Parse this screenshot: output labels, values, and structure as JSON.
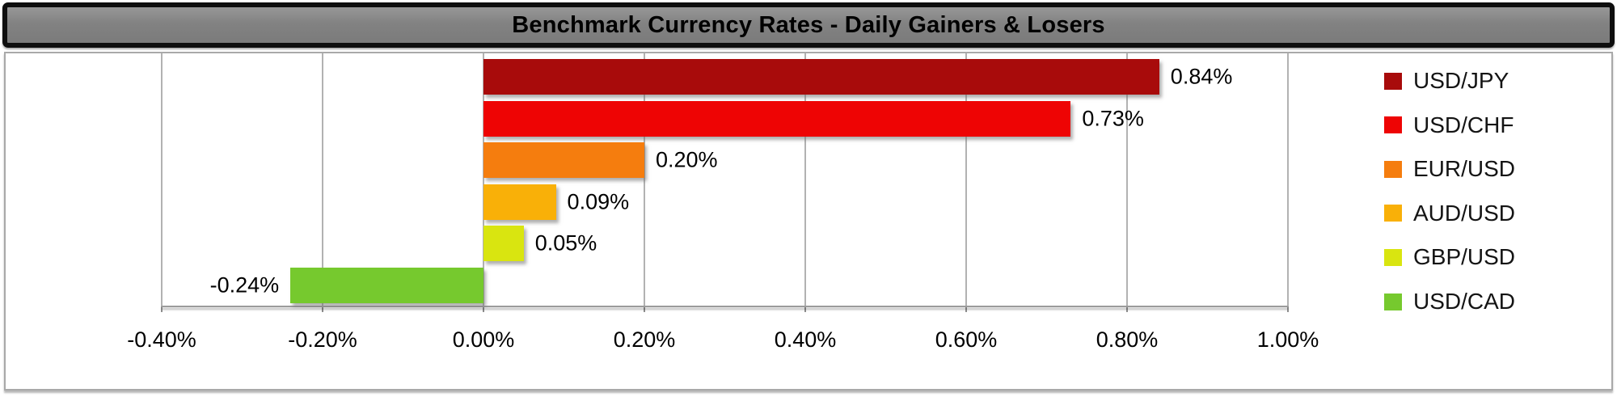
{
  "chart_data": {
    "type": "bar",
    "orientation": "horizontal",
    "title": "Benchmark Currency Rates - Daily Gainers & Losers",
    "categories": [
      "USD/JPY",
      "USD/CHF",
      "EUR/USD",
      "AUD/USD",
      "GBP/USD",
      "USD/CAD"
    ],
    "values": [
      0.84,
      0.73,
      0.2,
      0.09,
      0.05,
      -0.24
    ],
    "value_labels": [
      "0.84%",
      "0.73%",
      "0.20%",
      "0.09%",
      "0.05%",
      "-0.24%"
    ],
    "colors": [
      "#a80b0b",
      "#ee0404",
      "#f57d0e",
      "#f9b008",
      "#d9e510",
      "#76c92e"
    ],
    "xlim": [
      -0.4,
      1.0
    ],
    "x_ticks": [
      -0.4,
      -0.2,
      0.0,
      0.2,
      0.4,
      0.6,
      0.8,
      1.0
    ],
    "x_tick_labels": [
      "-0.40%",
      "-0.20%",
      "0.00%",
      "0.20%",
      "0.40%",
      "0.60%",
      "0.80%",
      "1.00%"
    ],
    "xlabel": "",
    "ylabel": "",
    "grid": "vertical",
    "legend_position": "right",
    "title_bar_fill": "#828282",
    "title_text_color": "#000000"
  }
}
